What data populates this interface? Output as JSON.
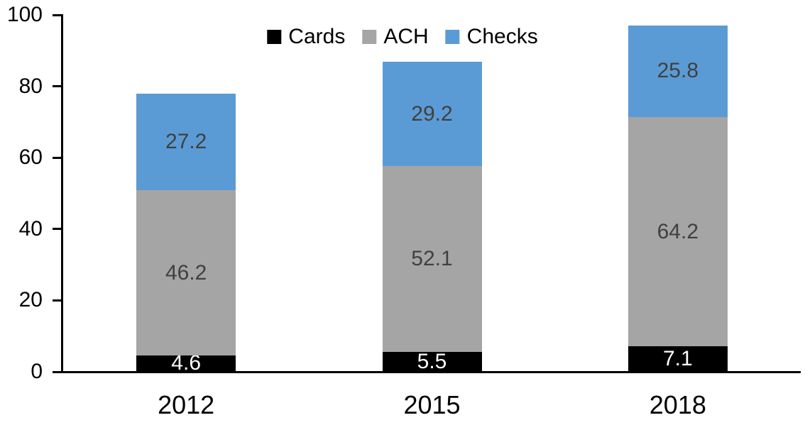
{
  "chart_data": {
    "type": "bar",
    "stacked": true,
    "categories": [
      "2012",
      "2015",
      "2018"
    ],
    "series": [
      {
        "name": "Cards",
        "color": "#000000",
        "label_color": "#ffffff",
        "values": [
          4.6,
          5.5,
          7.1
        ]
      },
      {
        "name": "ACH",
        "color": "#a5a5a5",
        "label_color": "#404040",
        "values": [
          46.2,
          52.1,
          64.2
        ]
      },
      {
        "name": "Checks",
        "color": "#5b9bd5",
        "label_color": "#404040",
        "values": [
          27.2,
          29.2,
          25.8
        ]
      }
    ],
    "totals": [
      78.0,
      86.8,
      97.1
    ],
    "ylim": [
      0,
      100
    ],
    "yticks": [
      0,
      20,
      40,
      60,
      80,
      100
    ],
    "legend_position": "top-center",
    "grid": false,
    "axis_color": "#000000",
    "background_color": "#ffffff"
  }
}
